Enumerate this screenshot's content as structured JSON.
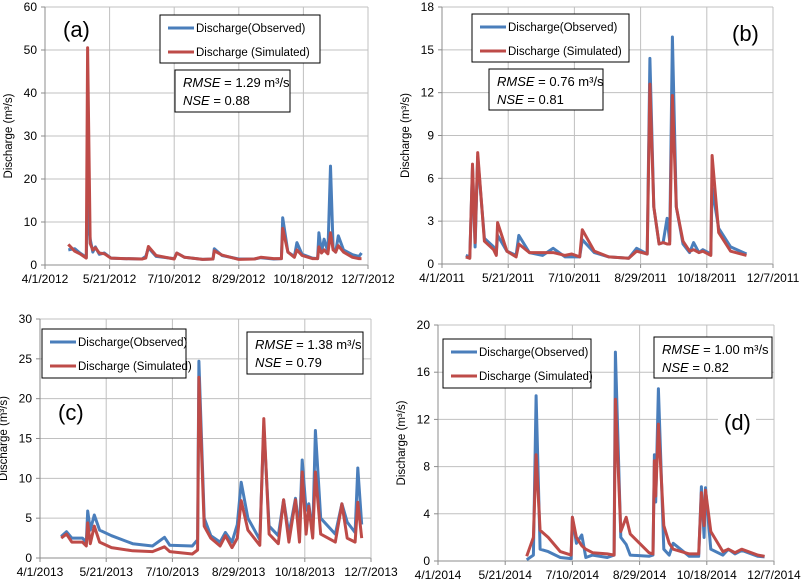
{
  "colors": {
    "observed": "#4a7ebb",
    "simulated": "#be4b48",
    "grid": "#c0c0c0",
    "axis": "#8c8c8c"
  },
  "chart_data": [
    {
      "type": "line",
      "panel_label": "(a)",
      "ylabel": "Discharge  (m³/s)",
      "ylim": [
        0,
        60
      ],
      "yticks": [
        "0",
        "10",
        "20",
        "30",
        "40",
        "50",
        "60"
      ],
      "xlim": [
        "2012-04-01",
        "2012-12-07"
      ],
      "xticks": [
        "4/1/2012",
        "5/21/2012",
        "7/10/2012",
        "8/29/2012",
        "10/18/2012",
        "12/7/2012"
      ],
      "grid": true,
      "legend_position": "top-center",
      "stats": {
        "rmse_label": "RMSE",
        "rmse_value": " = 1.29 m³/s",
        "nse_label": "NSE",
        "nse_value": " = 0.88"
      },
      "x": [
        "2012-04-19",
        "2012-04-24",
        "2012-04-28",
        "2012-05-03",
        "2012-05-04",
        "2012-05-06",
        "2012-05-08",
        "2012-05-10",
        "2012-05-13",
        "2012-05-17",
        "2012-05-22",
        "2012-06-01",
        "2012-06-15",
        "2012-06-18",
        "2012-06-20",
        "2012-06-26",
        "2012-07-10",
        "2012-07-12",
        "2012-07-18",
        "2012-08-01",
        "2012-08-09",
        "2012-08-10",
        "2012-08-16",
        "2012-08-29",
        "2012-09-10",
        "2012-09-15",
        "2012-09-25",
        "2012-10-01",
        "2012-10-02",
        "2012-10-06",
        "2012-10-11",
        "2012-10-13",
        "2012-10-17",
        "2012-10-25",
        "2012-10-29",
        "2012-10-30",
        "2012-11-01",
        "2012-11-03",
        "2012-11-06",
        "2012-11-08",
        "2012-11-10",
        "2012-11-12",
        "2012-11-14",
        "2012-11-18",
        "2012-11-25",
        "2012-11-30",
        "2012-12-02"
      ],
      "series": [
        {
          "name": "Discharge(Observed)",
          "values": [
            3.5,
            3.8,
            2.8,
            1.8,
            14,
            6,
            3,
            4.2,
            2.5,
            2.8,
            1.6,
            1.5,
            1.4,
            2,
            4,
            2,
            1.5,
            2.8,
            1.8,
            1.3,
            1.4,
            3.8,
            2.2,
            1.4,
            1.4,
            1.7,
            1.4,
            1.5,
            11,
            3,
            2,
            5.2,
            2.5,
            1.6,
            1.5,
            7.5,
            3,
            6,
            3,
            23,
            4,
            3,
            6.8,
            3.5,
            2.4,
            2,
            2.8
          ]
        },
        {
          "name": "Discharge (Simulated)",
          "values": [
            4.8,
            3.2,
            2.6,
            1.6,
            50.5,
            5,
            3.5,
            4,
            2.8,
            2.6,
            1.6,
            1.5,
            1.4,
            1.6,
            4.3,
            2.2,
            1.4,
            2.8,
            1.8,
            1.3,
            1.4,
            3.3,
            2.3,
            1.3,
            1.4,
            1.8,
            1.5,
            1.5,
            8.5,
            3,
            1.8,
            3.5,
            2.2,
            1.5,
            1.5,
            4.2,
            2.8,
            3.5,
            2.6,
            7.5,
            3.5,
            3,
            4.5,
            3,
            1.8,
            1.5,
            1.5
          ]
        }
      ]
    },
    {
      "type": "line",
      "panel_label": "(b)",
      "ylabel": "Discharge  (m³/s)",
      "ylim": [
        0,
        18
      ],
      "yticks": [
        "0",
        "3",
        "6",
        "9",
        "12",
        "15",
        "18"
      ],
      "xlim": [
        "2011-04-01",
        "2011-12-07"
      ],
      "xticks": [
        "4/1/2011",
        "5/21/2011",
        "7/10/2011",
        "8/29/2011",
        "10/18/2011",
        "12/7/2011"
      ],
      "grid": true,
      "legend_position": "top-left",
      "stats": {
        "rmse_label": "RMSE",
        "rmse_value": " = 0.76 m³/s",
        "nse_label": "NSE",
        "nse_value": " = 0.81"
      },
      "x": [
        "2011-04-19",
        "2011-04-22",
        "2011-04-24",
        "2011-04-26",
        "2011-04-28",
        "2011-05-03",
        "2011-05-10",
        "2011-05-12",
        "2011-05-13",
        "2011-05-20",
        "2011-05-27",
        "2011-05-29",
        "2011-06-06",
        "2011-06-16",
        "2011-06-24",
        "2011-07-03",
        "2011-07-08",
        "2011-07-14",
        "2011-07-16",
        "2011-07-25",
        "2011-08-05",
        "2011-08-20",
        "2011-08-26",
        "2011-09-03",
        "2011-09-05",
        "2011-09-08",
        "2011-09-12",
        "2011-09-15",
        "2011-09-18",
        "2011-09-20",
        "2011-09-22",
        "2011-09-25",
        "2011-09-30",
        "2011-10-05",
        "2011-10-08",
        "2011-10-12",
        "2011-10-15",
        "2011-10-21",
        "2011-10-22",
        "2011-10-27",
        "2011-11-05",
        "2011-11-17"
      ],
      "series": [
        {
          "name": "Discharge(Observed)",
          "values": [
            0.6,
            0.5,
            6.8,
            1.2,
            7.5,
            1.8,
            1.2,
            0.7,
            2,
            0.9,
            0.6,
            2,
            0.8,
            0.6,
            1.1,
            0.5,
            0.5,
            0.5,
            1.7,
            0.8,
            0.5,
            0.4,
            1.1,
            0.7,
            14.4,
            4,
            1.4,
            1.5,
            3.2,
            1.6,
            15.9,
            4,
            1.4,
            0.8,
            1.5,
            0.8,
            1.0,
            0.7,
            5.3,
            2.5,
            1.2,
            0.7
          ]
        },
        {
          "name": "Discharge (Simulated)",
          "values": [
            0.5,
            0.4,
            7,
            1.5,
            7.8,
            1.6,
            1.0,
            0.6,
            2.9,
            0.9,
            0.5,
            1.4,
            0.8,
            0.8,
            0.8,
            0.6,
            0.7,
            0.5,
            2.4,
            0.9,
            0.5,
            0.4,
            0.9,
            0.7,
            12.6,
            4,
            1.4,
            1.5,
            1.4,
            1.4,
            11.8,
            4,
            1.6,
            0.9,
            1.0,
            0.8,
            0.9,
            0.6,
            7.6,
            2.2,
            0.9,
            0.6
          ]
        }
      ]
    },
    {
      "type": "line",
      "panel_label": "(c)",
      "ylabel": "Discharge  (m³/s)",
      "ylim": [
        0,
        30
      ],
      "yticks": [
        "0",
        "5",
        "10",
        "15",
        "20",
        "25",
        "30"
      ],
      "xlim": [
        "2013-04-01",
        "2013-12-07"
      ],
      "xticks": [
        "4/1/2013",
        "5/21/2013",
        "7/10/2013",
        "8/29/2013",
        "10/18/2013",
        "12/7/2013"
      ],
      "grid": true,
      "legend_position": "top-left",
      "stats": {
        "rmse_label": "RMSE",
        "rmse_value": " = 1.38 m³/s",
        "nse_label": "NSE",
        "nse_value": " = 0.79"
      },
      "x": [
        "2013-04-17",
        "2013-04-21",
        "2013-04-25",
        "2013-05-03",
        "2013-05-06",
        "2013-05-07",
        "2013-05-09",
        "2013-05-12",
        "2013-05-16",
        "2013-05-25",
        "2013-06-10",
        "2013-06-25",
        "2013-07-04",
        "2013-07-08",
        "2013-07-25",
        "2013-07-29",
        "2013-07-30",
        "2013-08-03",
        "2013-08-08",
        "2013-08-15",
        "2013-08-19",
        "2013-08-24",
        "2013-08-28",
        "2013-08-31",
        "2013-09-05",
        "2013-09-14",
        "2013-09-17",
        "2013-09-21",
        "2013-09-28",
        "2013-10-02",
        "2013-10-06",
        "2013-10-11",
        "2013-10-14",
        "2013-10-16",
        "2013-10-19",
        "2013-10-21",
        "2013-10-24",
        "2013-10-26",
        "2013-10-30",
        "2013-11-10",
        "2013-11-15",
        "2013-11-19",
        "2013-11-25",
        "2013-11-27",
        "2013-11-30"
      ],
      "series": [
        {
          "name": "Discharge(Observed)",
          "values": [
            2.7,
            3.3,
            2.5,
            2.5,
            2,
            5.9,
            3.5,
            5.4,
            3.5,
            2.8,
            1.8,
            1.5,
            2.6,
            1.6,
            1.5,
            2.3,
            24.7,
            5,
            2.8,
            2,
            3.2,
            2,
            4.2,
            9.5,
            5,
            2.3,
            16.5,
            4,
            2.8,
            7.3,
            3,
            7.5,
            3.5,
            12.3,
            6,
            6.8,
            3,
            16,
            5,
            3,
            6.8,
            4.5,
            3.2,
            11.3,
            4.2
          ]
        },
        {
          "name": "Discharge (Simulated)",
          "values": [
            2.5,
            3,
            2,
            2,
            1.5,
            4.4,
            1.8,
            4,
            2,
            1.3,
            0.9,
            0.8,
            1.4,
            0.8,
            0.5,
            1.0,
            22.7,
            4,
            2.5,
            1.5,
            2.8,
            1.3,
            2.5,
            7.2,
            3.5,
            1.6,
            17.5,
            3,
            1.8,
            7.3,
            2,
            7.3,
            2,
            10.8,
            3,
            6.5,
            2.5,
            10.8,
            3,
            2,
            6.8,
            2.5,
            2,
            7,
            2.5
          ]
        }
      ]
    },
    {
      "type": "line",
      "panel_label": "(d)",
      "ylabel": "Discharge  (m³/s)",
      "ylim": [
        0,
        20
      ],
      "yticks": [
        "0",
        "4",
        "8",
        "12",
        "16",
        "20"
      ],
      "xlim": [
        "2014-04-01",
        "2014-12-07"
      ],
      "xticks": [
        "4/1/2014",
        "5/21/2014",
        "7/10/2014",
        "8/29/2014",
        "10/18/2014",
        "12/7/2014"
      ],
      "grid": true,
      "legend_position": "top-left",
      "stats": {
        "rmse_label": "RMSE",
        "rmse_value": " = 1.00 m³/s",
        "nse_label": "NSE",
        "nse_value": " = 0.82"
      },
      "x": [
        "2014-06-06",
        "2014-06-11",
        "2014-06-13",
        "2014-06-16",
        "2014-06-22",
        "2014-07-01",
        "2014-07-09",
        "2014-07-10",
        "2014-07-13",
        "2014-07-17",
        "2014-07-20",
        "2014-07-25",
        "2014-08-05",
        "2014-08-10",
        "2014-08-11",
        "2014-08-15",
        "2014-08-19",
        "2014-08-22",
        "2014-09-05",
        "2014-09-08",
        "2014-09-09",
        "2014-09-10",
        "2014-09-12",
        "2014-09-16",
        "2014-09-20",
        "2014-09-23",
        "2014-10-05",
        "2014-10-12",
        "2014-10-14",
        "2014-10-16",
        "2014-10-17",
        "2014-10-21",
        "2014-10-30",
        "2014-11-03",
        "2014-11-08",
        "2014-11-13",
        "2014-11-25",
        "2014-11-30"
      ],
      "series": [
        {
          "name": "Discharge(Observed)",
          "values": [
            0.1,
            0.5,
            14,
            1,
            0.8,
            0.3,
            0.2,
            3.7,
            1.5,
            2.2,
            0.3,
            0.5,
            0.3,
            0.5,
            17.7,
            2,
            1.4,
            0.5,
            0.4,
            0.5,
            9,
            5,
            14.6,
            1,
            0.5,
            1.5,
            0.4,
            0.4,
            6.3,
            2,
            6.2,
            1,
            0.5,
            1,
            0.6,
            0.9,
            0.4,
            0.35
          ]
        },
        {
          "name": "Discharge (Simulated)",
          "values": [
            0.4,
            2,
            9,
            2.6,
            2,
            0.8,
            0.5,
            3.7,
            2,
            1.3,
            1,
            0.7,
            0.6,
            0.5,
            13.7,
            2.5,
            3.7,
            2.3,
            0.7,
            0.6,
            8.5,
            5.5,
            11.6,
            3,
            1.5,
            1,
            0.6,
            0.6,
            5.8,
            3,
            6,
            2.5,
            0.8,
            1,
            0.7,
            1,
            0.5,
            0.4
          ]
        }
      ]
    }
  ]
}
